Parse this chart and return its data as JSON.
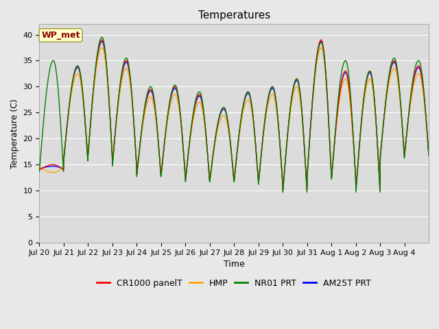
{
  "title": "Temperatures",
  "xlabel": "Time",
  "ylabel": "Temperature (C)",
  "ylim": [
    0,
    42
  ],
  "yticks": [
    0,
    5,
    10,
    15,
    20,
    25,
    30,
    35,
    40
  ],
  "figure_bg": "#e8e8e8",
  "plot_bg": "#dcdcdc",
  "series_order": [
    "CR1000 panelT",
    "HMP",
    "NR01 PRT",
    "AM25T PRT"
  ],
  "series_colors": [
    "red",
    "orange",
    "green",
    "blue"
  ],
  "series_zorders": [
    3,
    2,
    4,
    1
  ],
  "annotation": {
    "text": "WP_met",
    "fontsize": 9,
    "color": "#8b0000",
    "bbox_facecolor": "#ffffcc",
    "bbox_edgecolor": "#999933"
  },
  "x_tick_labels": [
    "Jul 20",
    "Jul 21",
    "Jul 22",
    "Jul 23",
    "Jul 24",
    "Jul 25",
    "Jul 26",
    "Jul 27",
    "Jul 28",
    "Jul 29",
    "Jul 30",
    "Jul 31",
    "Aug 1",
    "Aug 2",
    "Aug 3",
    "Aug 4"
  ],
  "daily_peaks": [
    15,
    34,
    39,
    35,
    29.5,
    30,
    28.5,
    26,
    29,
    30,
    31.5,
    39,
    33,
    33,
    35,
    34
  ],
  "daily_mins": [
    14,
    16,
    17,
    15,
    13,
    13,
    12,
    12,
    12,
    11.5,
    10,
    13,
    12.5,
    10,
    16.5,
    17
  ],
  "green_extra_peaks": [
    35,
    34,
    39.5,
    35.5,
    30,
    30.3,
    29,
    26,
    29,
    30,
    31.5,
    38.5,
    35,
    33,
    35.5,
    35
  ],
  "title_fontsize": 11,
  "axis_label_fontsize": 9,
  "tick_fontsize": 8,
  "legend_fontsize": 9,
  "linewidth": 1.0
}
